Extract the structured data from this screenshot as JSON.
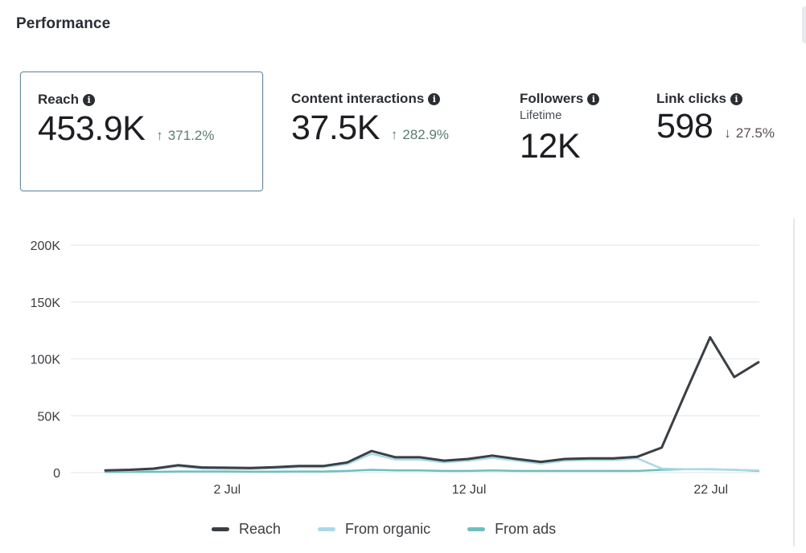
{
  "header": {
    "title": "Performance"
  },
  "metrics": [
    {
      "label": "Reach",
      "info_icon": "info-icon",
      "value": "453.9K",
      "change": "371.2%",
      "direction": "up",
      "arrow": "↑",
      "selected": true
    },
    {
      "label": "Content interactions",
      "info_icon": "info-icon",
      "value": "37.5K",
      "change": "282.9%",
      "direction": "up",
      "arrow": "↑"
    },
    {
      "label": "Followers",
      "info_icon": "info-icon",
      "sublabel": "Lifetime",
      "value": "12K"
    },
    {
      "label": "Link clicks",
      "info_icon": "info-icon",
      "value": "598",
      "change": "27.5%",
      "direction": "down",
      "arrow": "↓"
    }
  ],
  "icons": {
    "info": "i"
  },
  "colors": {
    "reach": "#3a3f44",
    "organic": "#a9d9e6",
    "ads": "#6dbfbf",
    "selected_border": "#6a8ca3",
    "change_up": "#5b7d71",
    "change_down": "#5b4f52"
  },
  "chart_data": {
    "type": "line",
    "title": "",
    "xlabel": "",
    "ylabel": "",
    "ylim": [
      0,
      200000
    ],
    "grid": true,
    "legend_position": "bottom-center",
    "y_ticks": [
      0,
      50000,
      100000,
      150000,
      200000
    ],
    "y_tick_labels": [
      "0",
      "50K",
      "100K",
      "150K",
      "200K"
    ],
    "x_tick_labels": [
      {
        "label": "2 Jul",
        "index": 5
      },
      {
        "label": "12 Jul",
        "index": 15
      },
      {
        "label": "22 Jul",
        "index": 25
      }
    ],
    "x": [
      "27 Jun",
      "28 Jun",
      "29 Jun",
      "30 Jun",
      "1 Jul",
      "2 Jul",
      "3 Jul",
      "4 Jul",
      "5 Jul",
      "6 Jul",
      "7 Jul",
      "8 Jul",
      "9 Jul",
      "10 Jul",
      "11 Jul",
      "12 Jul",
      "13 Jul",
      "14 Jul",
      "15 Jul",
      "16 Jul",
      "17 Jul",
      "18 Jul",
      "19 Jul",
      "20 Jul",
      "21 Jul",
      "22 Jul",
      "23 Jul",
      "24 Jul"
    ],
    "series": [
      {
        "name": "Reach",
        "color": "#3a3f44",
        "values": [
          2000,
          2500,
          3500,
          6500,
          4500,
          4300,
          4000,
          4800,
          5800,
          5800,
          9000,
          19000,
          13500,
          13500,
          10500,
          12000,
          15000,
          12000,
          9500,
          12000,
          12500,
          12500,
          14000,
          22000,
          71000,
          119000,
          84000,
          97000
        ]
      },
      {
        "name": "From organic",
        "color": "#a9d9e6",
        "values": [
          1500,
          1800,
          2800,
          5500,
          3500,
          3300,
          3200,
          3900,
          4800,
          4800,
          7500,
          16500,
          11500,
          11500,
          9000,
          10500,
          13000,
          10500,
          8000,
          10500,
          11000,
          11000,
          12500,
          3500,
          3000,
          2800,
          2500,
          2000
        ]
      },
      {
        "name": "From ads",
        "color": "#6dbfbf",
        "values": [
          500,
          700,
          700,
          1000,
          1000,
          1000,
          800,
          900,
          1000,
          1000,
          1500,
          2500,
          2000,
          2000,
          1500,
          1500,
          2000,
          1500,
          1500,
          1500,
          1500,
          1500,
          1500,
          2500,
          3000,
          3000,
          2500,
          1500
        ]
      }
    ]
  }
}
